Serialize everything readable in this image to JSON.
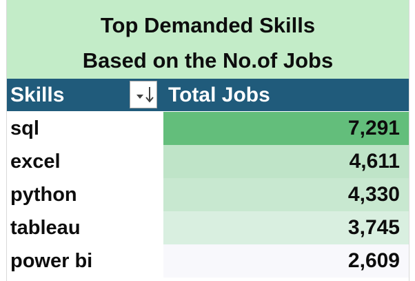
{
  "title": {
    "line1": "Top Demanded Skills",
    "line2": "Based on the No.of Jobs"
  },
  "header": {
    "skills_label": "Skills",
    "total_jobs_label": "Total Jobs",
    "filter_icon": "sort-filter-icon"
  },
  "rows": [
    {
      "skill": "sql",
      "total_jobs": "7,291",
      "fill": "#63be7b"
    },
    {
      "skill": "excel",
      "total_jobs": "4,611",
      "fill": "#bfe4c8"
    },
    {
      "skill": "python",
      "total_jobs": "4,330",
      "fill": "#c8e8d0"
    },
    {
      "skill": "tableau",
      "total_jobs": "3,745",
      "fill": "#d9efe0"
    },
    {
      "skill": "power bi",
      "total_jobs": "2,609",
      "fill": "#f8f8fc"
    }
  ],
  "colors": {
    "title_background": "#c3ecc8",
    "header_background": "#205b7b",
    "header_text": "#ffffff"
  }
}
